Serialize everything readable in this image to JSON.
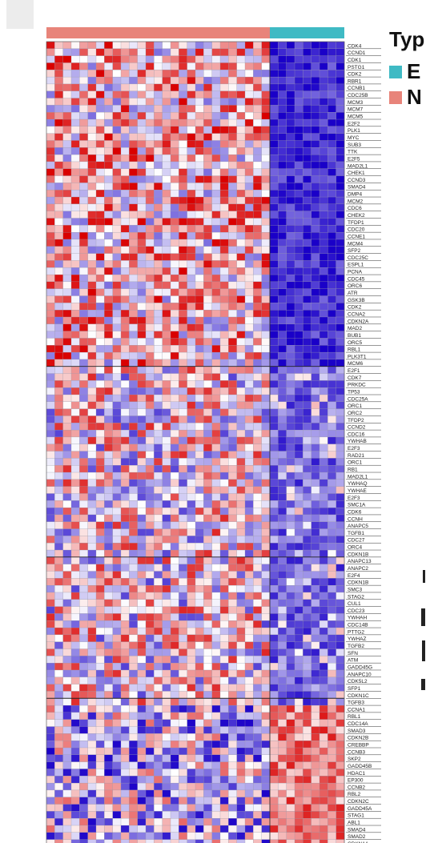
{
  "chart_data": {
    "type": "heatmap",
    "legend": {
      "title": "Typ",
      "entries": [
        {
          "label": "E",
          "color": "#3fbac4"
        },
        {
          "label": "N",
          "color": "#e8847a"
        }
      ]
    },
    "columns": {
      "count": 36,
      "group_split_after": 27,
      "group_colors": [
        "#e8847a",
        "#3fbac4"
      ]
    },
    "color_scale": [
      "#1a00c8",
      "#ffffff",
      "#d90000"
    ],
    "genes": [
      "CDK4",
      "CCND1",
      "CDK1",
      "PSTG1",
      "CDK2",
      "RBR1",
      "CCNB1",
      "CDC25B",
      "MCM3",
      "MCM7",
      "MCM5",
      "E2F2",
      "PLK1",
      "MYC",
      "SUB3",
      "TTK",
      "E2F5",
      "MAD2L1",
      "CHEK1",
      "CCND3",
      "SMAD4",
      "DMP4",
      "MCM2",
      "CDC6",
      "CHEK2",
      "TFDP1",
      "CDC20",
      "CCNE1",
      "MCM4",
      "SFP2",
      "CDC25C",
      "ESPL1",
      "PCNA",
      "CDC45",
      "ORC6",
      "ATR",
      "GSK3B",
      "CDK2",
      "CCNA2",
      "CDKN2A",
      "MAD2",
      "BUB1",
      "ORC5",
      "RBL1",
      "PLK3T1",
      "MCM6",
      "E2F1",
      "CDK7",
      "PRKDC",
      "TP53",
      "CDC25A",
      "ORC1",
      "ORC2",
      "TFDP2",
      "CCND2",
      "CDC16",
      "YWHAB",
      "E2F3",
      "RAD21",
      "ORC1",
      "RB1",
      "MAD2L1",
      "YWHAQ",
      "YWHAE",
      "E2F3",
      "SMC1A",
      "CDK6",
      "CCNH",
      "ANAPC5",
      "TGFB1",
      "CDC27",
      "ORC4",
      "CDKN1B",
      "ANAPC13",
      "ANAPC2",
      "E2F4",
      "CDKN1B",
      "SMC3",
      "STAG2",
      "CUL1",
      "CDC23",
      "YWHAH",
      "CDC14B",
      "PTTG2",
      "YWHAZ",
      "TGFB2",
      "SFN",
      "ATM",
      "GADD45G",
      "ANAPC10",
      "CDK5L2",
      "SFP1",
      "CDKN1C",
      "TGFB3",
      "CCNA1",
      "RBL1",
      "CDC14A",
      "SMAD3",
      "CDKN2B",
      "CREBBP",
      "CCNB3",
      "SKP2",
      "GADD45B",
      "HDAC1",
      "EP300",
      "CCNB2",
      "RBL2",
      "CDKN2C",
      "GADD45A",
      "STAG1",
      "ABL1",
      "SMAD4",
      "SMAD2",
      "CDKN1A"
    ],
    "group_labels": [
      "E",
      "N"
    ],
    "type_strip": [
      "N",
      "E"
    ],
    "value_range": [
      -2,
      2
    ],
    "values_note_rows": [
      [
        0.2,
        -0.4,
        0.8,
        0.5,
        -0.9,
        0.6,
        1.1,
        -0.3,
        0.4,
        0.9,
        -0.2,
        0.7,
        0.5,
        -0.6,
        1.2,
        0.3,
        -0.1,
        0.6,
        0.8,
        -0.5,
        0.4,
        1.0,
        0.2,
        -0.8,
        0.6,
        0.3,
        0.9,
        -1.6,
        -1.8,
        -1.4,
        -1.9,
        -1.7,
        -1.5,
        -1.8,
        -1.3,
        -1.6
      ]
    ]
  }
}
